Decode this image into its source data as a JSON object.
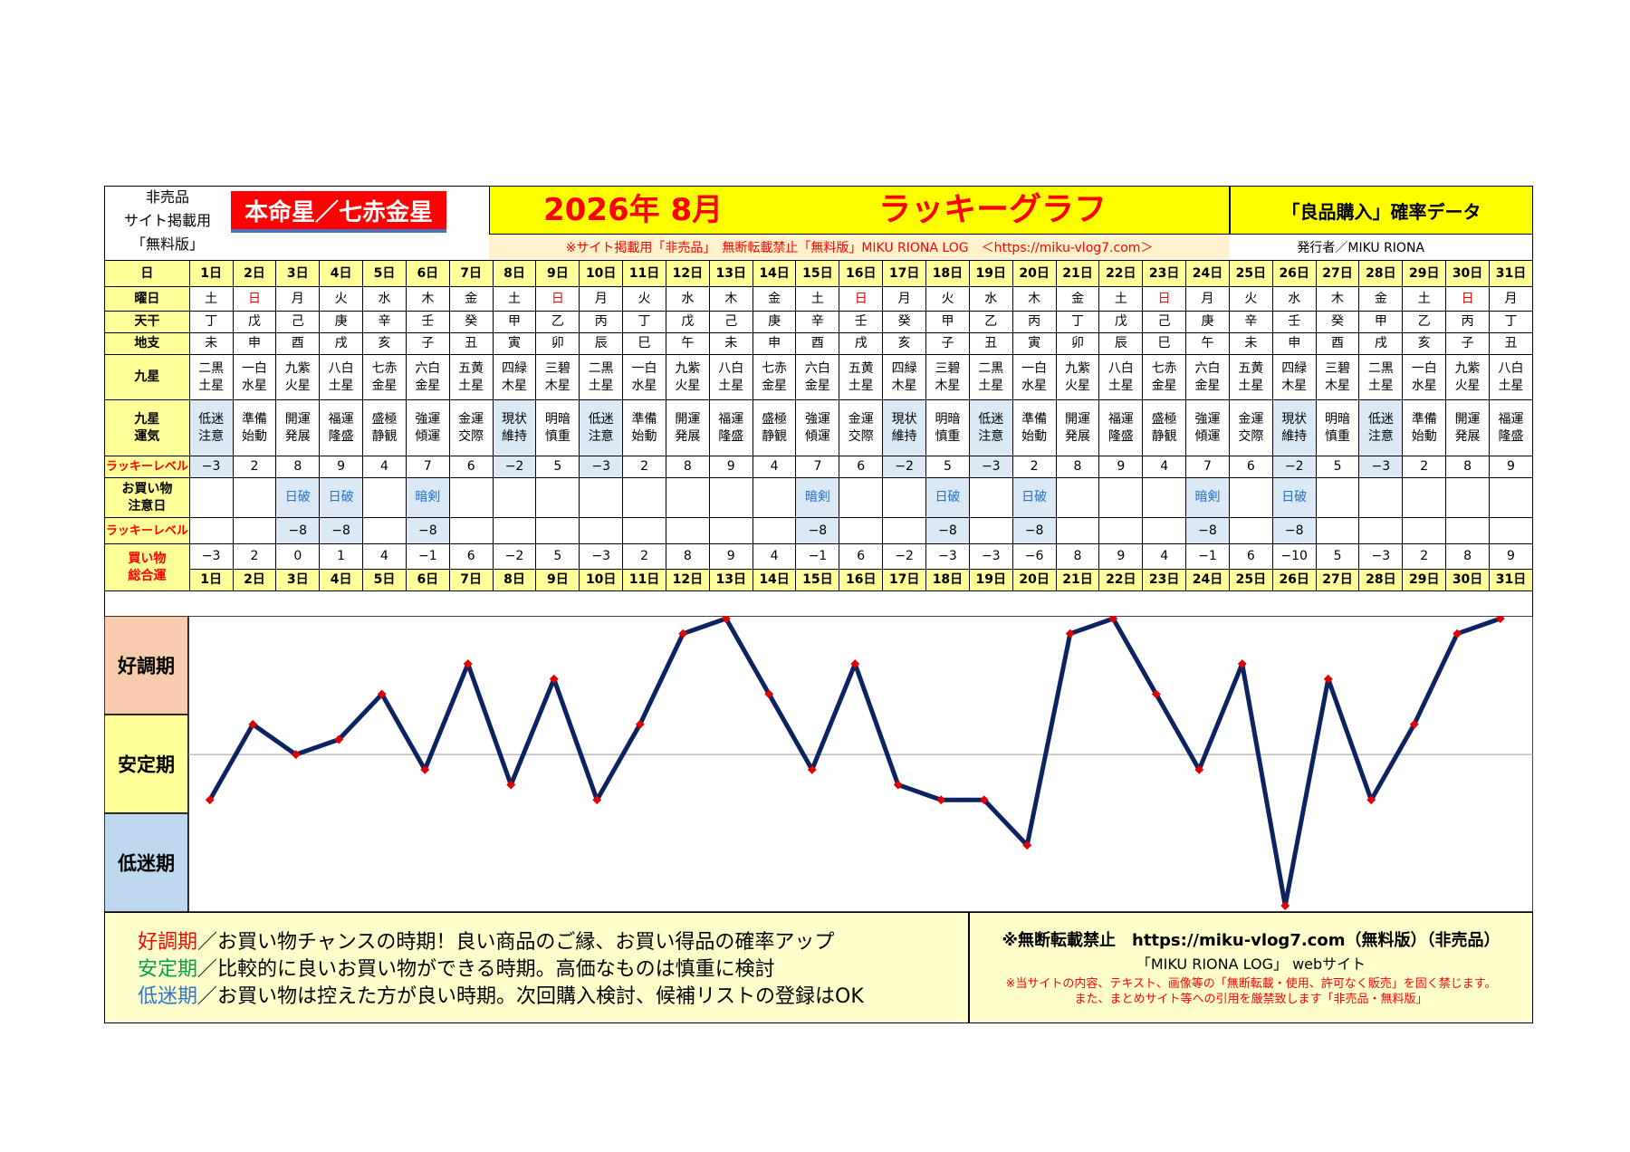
{
  "header": {
    "not_for_sale_lines": [
      "非売品",
      "サイト掲載用",
      "「無料版」"
    ],
    "honmei": "本命星／七赤金星",
    "year_month": "2026年 8月",
    "lucky_title": "ラッキーグラフ",
    "data_title": "「良品購入」確率データ",
    "notice": "※サイト掲載用「非売品」　無断転載禁止「無料版」MIKU RIONA LOG　＜https://miku-vlog7.com＞",
    "publisher": "発行者／MIKU RIONA"
  },
  "row_labels": {
    "day": "日",
    "weekday": "曜日",
    "stem": "天干",
    "branch": "地支",
    "kyusei": "九星",
    "kyusei_luck": "九星\n運気",
    "lucky_level": "ラッキーレベル",
    "caution": "お買い物\n注意日",
    "lucky_level2": "ラッキーレベル",
    "total": "買い物\n総合運"
  },
  "days": [
    "1日",
    "2日",
    "3日",
    "4日",
    "5日",
    "6日",
    "7日",
    "8日",
    "9日",
    "10日",
    "11日",
    "12日",
    "13日",
    "14日",
    "15日",
    "16日",
    "17日",
    "18日",
    "19日",
    "20日",
    "21日",
    "22日",
    "23日",
    "24日",
    "25日",
    "26日",
    "27日",
    "28日",
    "29日",
    "30日",
    "31日"
  ],
  "weekdays": [
    "土",
    "日",
    "月",
    "火",
    "水",
    "木",
    "金",
    "土",
    "日",
    "月",
    "火",
    "水",
    "木",
    "金",
    "土",
    "日",
    "月",
    "火",
    "水",
    "木",
    "金",
    "土",
    "日",
    "月",
    "火",
    "水",
    "木",
    "金",
    "土",
    "日",
    "月"
  ],
  "stems": [
    "丁",
    "戊",
    "己",
    "庚",
    "辛",
    "壬",
    "癸",
    "甲",
    "乙",
    "丙",
    "丁",
    "戊",
    "己",
    "庚",
    "辛",
    "壬",
    "癸",
    "甲",
    "乙",
    "丙",
    "丁",
    "戊",
    "己",
    "庚",
    "辛",
    "壬",
    "癸",
    "甲",
    "乙",
    "丙",
    "丁"
  ],
  "branches": [
    "未",
    "申",
    "酉",
    "戌",
    "亥",
    "子",
    "丑",
    "寅",
    "卯",
    "辰",
    "巳",
    "午",
    "未",
    "申",
    "酉",
    "戌",
    "亥",
    "子",
    "丑",
    "寅",
    "卯",
    "辰",
    "巳",
    "午",
    "未",
    "申",
    "酉",
    "戌",
    "亥",
    "子",
    "丑"
  ],
  "kyusei": [
    "二黒\n土星",
    "一白\n水星",
    "九紫\n火星",
    "八白\n土星",
    "七赤\n金星",
    "六白\n金星",
    "五黄\n土星",
    "四緑\n木星",
    "三碧\n木星",
    "二黒\n土星",
    "一白\n水星",
    "九紫\n火星",
    "八白\n土星",
    "七赤\n金星",
    "六白\n金星",
    "五黄\n土星",
    "四緑\n木星",
    "三碧\n木星",
    "二黒\n土星",
    "一白\n水星",
    "九紫\n火星",
    "八白\n土星",
    "七赤\n金星",
    "六白\n金星",
    "五黄\n土星",
    "四緑\n木星",
    "三碧\n木星",
    "二黒\n土星",
    "一白\n水星",
    "九紫\n火星",
    "八白\n土星"
  ],
  "kyusei_luck": [
    "低迷\n注意",
    "準備\n始動",
    "開運\n発展",
    "福運\n隆盛",
    "盛極\n静観",
    "強運\n傾運",
    "金運\n交際",
    "現状\n維持",
    "明暗\n慎重",
    "低迷\n注意",
    "準備\n始動",
    "開運\n発展",
    "福運\n隆盛",
    "盛極\n静観",
    "強運\n傾運",
    "金運\n交際",
    "現状\n維持",
    "明暗\n慎重",
    "低迷\n注意",
    "準備\n始動",
    "開運\n発展",
    "福運\n隆盛",
    "盛極\n静観",
    "強運\n傾運",
    "金運\n交際",
    "現状\n維持",
    "明暗\n慎重",
    "低迷\n注意",
    "準備\n始動",
    "開運\n発展",
    "福運\n隆盛"
  ],
  "lucky_levels": [
    "−3",
    "2",
    "8",
    "9",
    "4",
    "7",
    "6",
    "−2",
    "5",
    "−3",
    "2",
    "8",
    "9",
    "4",
    "7",
    "6",
    "−2",
    "5",
    "−3",
    "2",
    "8",
    "9",
    "4",
    "7",
    "6",
    "−2",
    "5",
    "−3",
    "2",
    "8",
    "9"
  ],
  "caution_days": [
    "",
    "",
    "日破",
    "日破",
    "",
    "暗剣",
    "",
    "",
    "",
    "",
    "",
    "",
    "",
    "",
    "暗剣",
    "",
    "",
    "日破",
    "",
    "日破",
    "",
    "",
    "",
    "暗剣",
    "",
    "日破",
    "",
    "",
    "",
    "",
    ""
  ],
  "caution_levels": [
    "",
    "",
    "−8",
    "−8",
    "",
    "−8",
    "",
    "",
    "",
    "",
    "",
    "",
    "",
    "",
    "−8",
    "",
    "",
    "−8",
    "",
    "−8",
    "",
    "",
    "",
    "−8",
    "",
    "−8",
    "",
    "",
    "",
    "",
    ""
  ],
  "totals": [
    "−3",
    "2",
    "0",
    "1",
    "4",
    "−1",
    "6",
    "−2",
    "5",
    "−3",
    "2",
    "8",
    "9",
    "4",
    "−1",
    "6",
    "−2",
    "−3",
    "−3",
    "−6",
    "8",
    "9",
    "4",
    "−1",
    "6",
    "−10",
    "5",
    "−3",
    "2",
    "8",
    "9"
  ],
  "colors": {
    "line": "#0d2260",
    "marker": "#e00000",
    "good": "#f8cbad",
    "stable": "#ffff99",
    "low": "#bdd7ee",
    "red": "#ff0000"
  },
  "chart_data": {
    "type": "line",
    "x": [
      "1日",
      "2日",
      "3日",
      "4日",
      "5日",
      "6日",
      "7日",
      "8日",
      "9日",
      "10日",
      "11日",
      "12日",
      "13日",
      "14日",
      "15日",
      "16日",
      "17日",
      "18日",
      "19日",
      "20日",
      "21日",
      "22日",
      "23日",
      "24日",
      "25日",
      "26日",
      "27日",
      "28日",
      "29日",
      "30日",
      "31日"
    ],
    "series": [
      {
        "values": [
          -3,
          2,
          0,
          1,
          4,
          -1,
          6,
          -2,
          5,
          -3,
          2,
          8,
          9,
          4,
          -1,
          6,
          -2,
          -3,
          -3,
          -6,
          8,
          9,
          4,
          -1,
          6,
          -10,
          5,
          -3,
          2,
          8,
          9
        ]
      }
    ],
    "ylim": [
      -10,
      9
    ],
    "zones": [
      "好調期",
      "安定期",
      "低迷期"
    ],
    "grid": "single reference line at 0"
  },
  "legend": {
    "good_key": "好調期",
    "good_text": "／お買い物チャンスの時期！良い商品のご縁、お買い得品の確率アップ",
    "stable_key": "安定期",
    "stable_text": "／比較的に良いお買い物ができる時期。高価なものは慎重に検討",
    "low_key": "低迷期",
    "low_text": "／お買い物は控えた方が良い時期。次回購入検討、候補リストの登録はOK"
  },
  "copyright": {
    "line1": "※無断転載禁止　https://miku-vlog7.com（無料版）（非売品）",
    "line2": "「MIKU RIONA LOG」 webサイト",
    "line3": "※当サイトの内容、テキスト、画像等の「無断転載・使用、許可なく販売」を固く禁じます。",
    "line4": "また、まとめサイト等への引用を厳禁致します「非売品・無料版」"
  }
}
